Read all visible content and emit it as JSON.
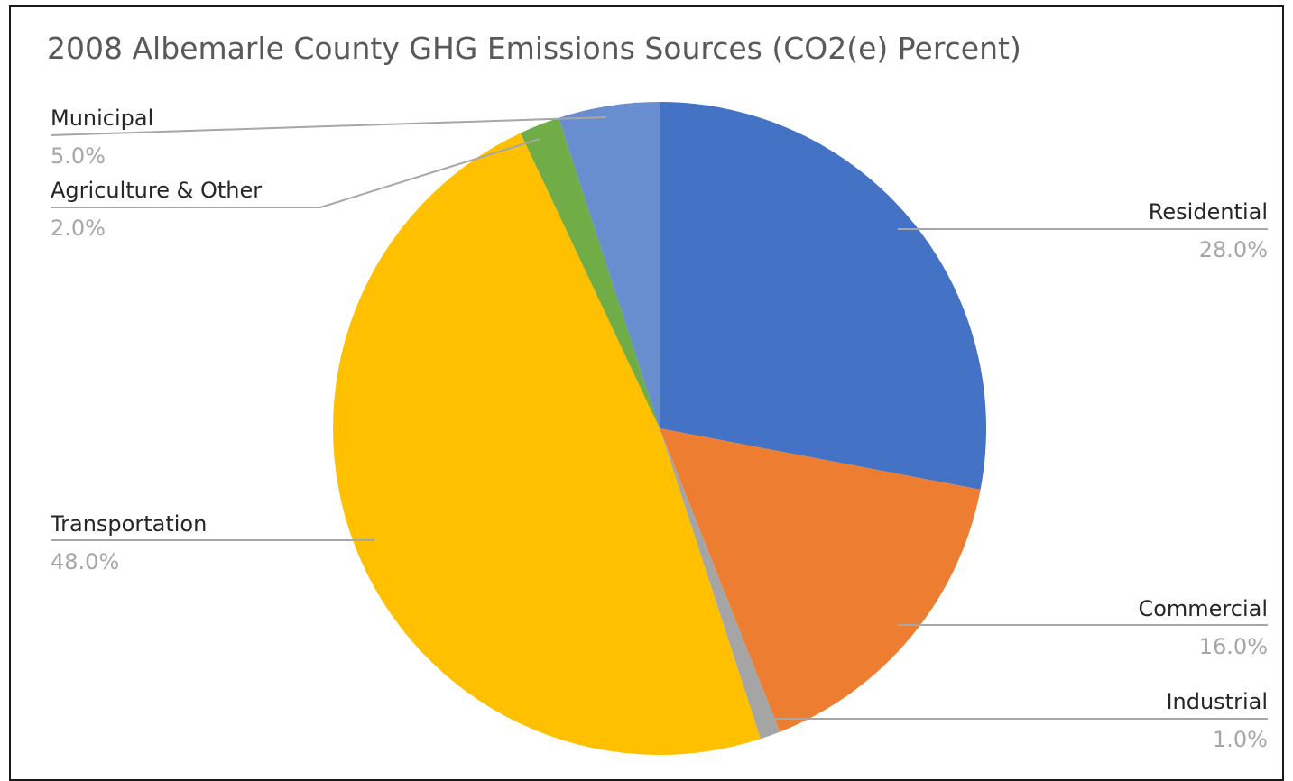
{
  "chart_data": {
    "type": "pie",
    "title": "2008 Albemarle County GHG Emissions Sources (CO2(e) Percent)",
    "slices": [
      {
        "label": "Residential",
        "value": 28.0,
        "display": "28.0%",
        "color": "#4472C4"
      },
      {
        "label": "Commercial",
        "value": 16.0,
        "display": "16.0%",
        "color": "#ED7D31"
      },
      {
        "label": "Industrial",
        "value": 1.0,
        "display": "1.0%",
        "color": "#A5A5A5"
      },
      {
        "label": "Transportation",
        "value": 48.0,
        "display": "48.0%",
        "color": "#FFC000"
      },
      {
        "label": "Agriculture & Other",
        "value": 2.0,
        "display": "2.0%",
        "color": "#70AD47"
      },
      {
        "label": "Municipal",
        "value": 5.0,
        "display": "5.0%",
        "color": "#698ED0"
      }
    ],
    "data_labels": "outside with leader lines"
  }
}
